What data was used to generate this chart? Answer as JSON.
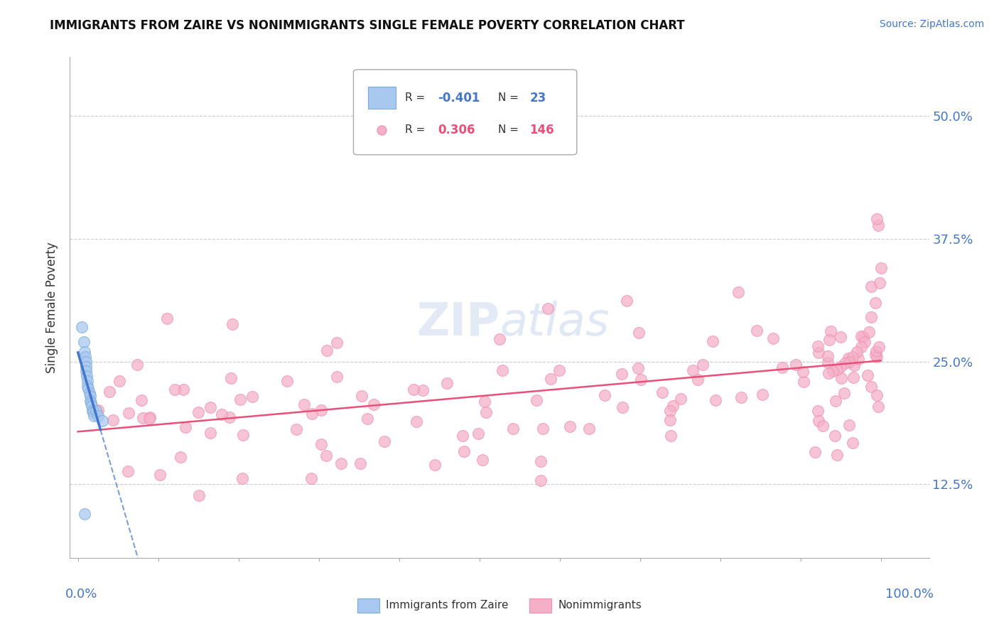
{
  "title": "IMMIGRANTS FROM ZAIRE VS NONIMMIGRANTS SINGLE FEMALE POVERTY CORRELATION CHART",
  "source": "Source: ZipAtlas.com",
  "ylabel": "Single Female Poverty",
  "ytick_vals": [
    0.125,
    0.25,
    0.375,
    0.5
  ],
  "ytick_labels": [
    "12.5%",
    "25.0%",
    "37.5%",
    "50.0%"
  ],
  "R_imm": -0.401,
  "N_imm": 23,
  "R_non": 0.306,
  "N_non": 146,
  "color_imm_fill": "#a8c8f0",
  "color_imm_edge": "#7aacd8",
  "color_non_fill": "#f5b0c8",
  "color_non_edge": "#f090b0",
  "color_trend_blue": "#4477cc",
  "color_trend_pink": "#e8507a",
  "color_ytick": "#4477cc",
  "color_xtick": "#4477cc",
  "background_color": "#ffffff",
  "grid_color": "#cccccc",
  "watermark": "ZIPatlas",
  "title_fontsize": 12,
  "source_fontsize": 10,
  "ylim_low": 0.05,
  "ylim_high": 0.56,
  "xlim_low": -0.01,
  "xlim_high": 1.06
}
